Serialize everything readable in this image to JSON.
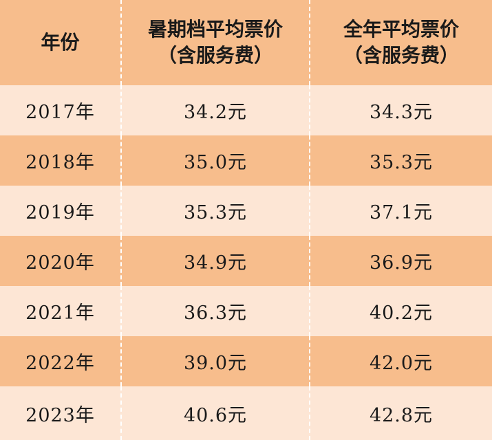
{
  "headers": {
    "year": "年份",
    "summer_line1": "暑期档平均票价",
    "summer_line2": "（含服务费）",
    "annual_line1": "全年平均票价",
    "annual_line2": "（含服务费）"
  },
  "rows": [
    {
      "year": "2017年",
      "summer": "34.2元",
      "annual": "34.3元"
    },
    {
      "year": "2018年",
      "summer": "35.0元",
      "annual": "35.3元"
    },
    {
      "year": "2019年",
      "summer": "35.3元",
      "annual": "37.1元"
    },
    {
      "year": "2020年",
      "summer": "34.9元",
      "annual": "36.9元"
    },
    {
      "year": "2021年",
      "summer": "36.3元",
      "annual": "40.2元"
    },
    {
      "year": "2022年",
      "summer": "39.0元",
      "annual": "42.0元"
    },
    {
      "year": "2023年",
      "summer": "40.6元",
      "annual": "42.8元"
    }
  ],
  "colors": {
    "header_bg": "#f7bd8c",
    "row_light": "#fde6d5",
    "row_dark": "#f7bd8c"
  }
}
